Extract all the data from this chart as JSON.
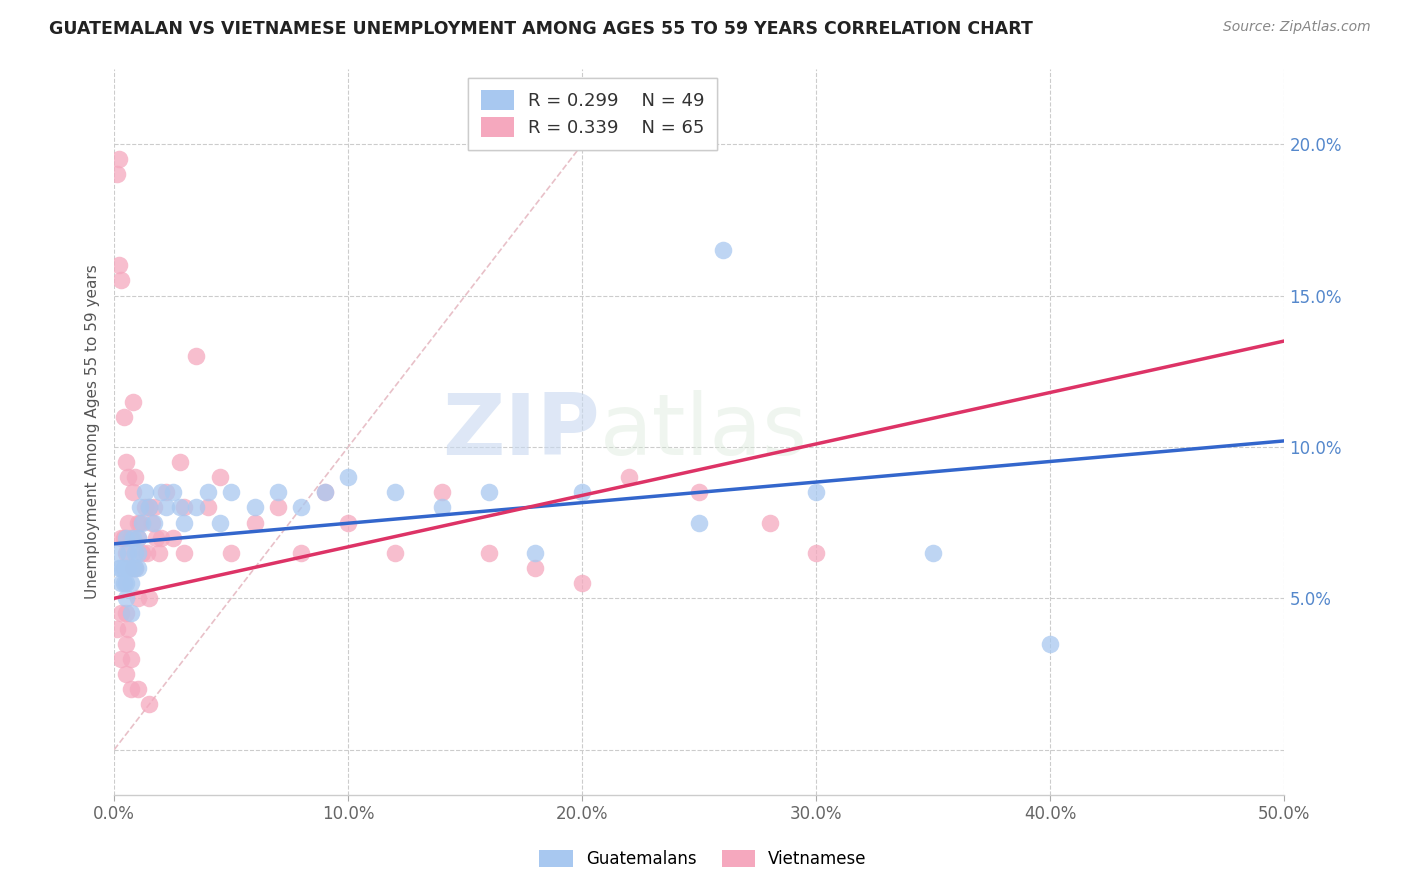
{
  "title": "GUATEMALAN VS VIETNAMESE UNEMPLOYMENT AMONG AGES 55 TO 59 YEARS CORRELATION CHART",
  "source": "Source: ZipAtlas.com",
  "ylabel": "Unemployment Among Ages 55 to 59 years",
  "xlim": [
    0.0,
    0.5
  ],
  "ylim": [
    -0.015,
    0.225
  ],
  "xticks": [
    0.0,
    0.1,
    0.2,
    0.3,
    0.4,
    0.5
  ],
  "xticklabels": [
    "0.0%",
    "10.0%",
    "20.0%",
    "30.0%",
    "40.0%",
    "50.0%"
  ],
  "yticks": [
    0.0,
    0.05,
    0.1,
    0.15,
    0.2
  ],
  "yticklabels": [
    "",
    "5.0%",
    "10.0%",
    "15.0%",
    "20.0%"
  ],
  "legend_r_guatemalan": "R = 0.299",
  "legend_n_guatemalan": "N = 49",
  "legend_r_vietnamese": "R = 0.339",
  "legend_n_vietnamese": "N = 65",
  "color_guatemalan": "#a8c8f0",
  "color_vietnamese": "#f5a8be",
  "trendline_color_guatemalan": "#3366cc",
  "trendline_color_vietnamese": "#dd3366",
  "diagonal_color": "#e8c0c8",
  "watermark_zip": "ZIP",
  "watermark_atlas": "atlas",
  "guatemalan_x": [
    0.001,
    0.002,
    0.003,
    0.003,
    0.004,
    0.004,
    0.005,
    0.005,
    0.005,
    0.006,
    0.006,
    0.007,
    0.007,
    0.008,
    0.008,
    0.009,
    0.009,
    0.01,
    0.01,
    0.01,
    0.011,
    0.012,
    0.013,
    0.015,
    0.017,
    0.02,
    0.022,
    0.025,
    0.028,
    0.03,
    0.035,
    0.04,
    0.045,
    0.05,
    0.06,
    0.07,
    0.08,
    0.09,
    0.1,
    0.12,
    0.14,
    0.16,
    0.18,
    0.2,
    0.25,
    0.3,
    0.35,
    0.4,
    0.26
  ],
  "guatemalan_y": [
    0.065,
    0.06,
    0.055,
    0.06,
    0.06,
    0.055,
    0.07,
    0.05,
    0.055,
    0.065,
    0.06,
    0.045,
    0.055,
    0.07,
    0.06,
    0.06,
    0.065,
    0.065,
    0.07,
    0.06,
    0.08,
    0.075,
    0.085,
    0.08,
    0.075,
    0.085,
    0.08,
    0.085,
    0.08,
    0.075,
    0.08,
    0.085,
    0.075,
    0.085,
    0.08,
    0.085,
    0.08,
    0.085,
    0.09,
    0.085,
    0.08,
    0.085,
    0.065,
    0.085,
    0.075,
    0.085,
    0.065,
    0.035,
    0.165
  ],
  "vietnamese_x": [
    0.001,
    0.001,
    0.002,
    0.002,
    0.003,
    0.003,
    0.003,
    0.004,
    0.004,
    0.005,
    0.005,
    0.005,
    0.005,
    0.006,
    0.006,
    0.006,
    0.007,
    0.007,
    0.008,
    0.008,
    0.008,
    0.009,
    0.009,
    0.01,
    0.01,
    0.01,
    0.011,
    0.012,
    0.013,
    0.014,
    0.015,
    0.015,
    0.016,
    0.017,
    0.018,
    0.019,
    0.02,
    0.022,
    0.025,
    0.028,
    0.03,
    0.03,
    0.035,
    0.04,
    0.045,
    0.05,
    0.06,
    0.07,
    0.08,
    0.09,
    0.1,
    0.12,
    0.14,
    0.16,
    0.18,
    0.2,
    0.22,
    0.25,
    0.28,
    0.3,
    0.003,
    0.005,
    0.007,
    0.01,
    0.015
  ],
  "vietnamese_y": [
    0.19,
    0.04,
    0.195,
    0.16,
    0.155,
    0.07,
    0.045,
    0.11,
    0.07,
    0.095,
    0.065,
    0.045,
    0.035,
    0.09,
    0.075,
    0.04,
    0.07,
    0.03,
    0.085,
    0.115,
    0.06,
    0.09,
    0.06,
    0.075,
    0.07,
    0.05,
    0.075,
    0.065,
    0.08,
    0.065,
    0.08,
    0.05,
    0.075,
    0.08,
    0.07,
    0.065,
    0.07,
    0.085,
    0.07,
    0.095,
    0.065,
    0.08,
    0.13,
    0.08,
    0.09,
    0.065,
    0.075,
    0.08,
    0.065,
    0.085,
    0.075,
    0.065,
    0.085,
    0.065,
    0.06,
    0.055,
    0.09,
    0.085,
    0.075,
    0.065,
    0.03,
    0.025,
    0.02,
    0.02,
    0.015
  ],
  "guat_trend_x0": 0.0,
  "guat_trend_y0": 0.068,
  "guat_trend_x1": 0.5,
  "guat_trend_y1": 0.102,
  "viet_trend_x0": 0.0,
  "viet_trend_y0": 0.05,
  "viet_trend_x1": 0.5,
  "viet_trend_y1": 0.135
}
